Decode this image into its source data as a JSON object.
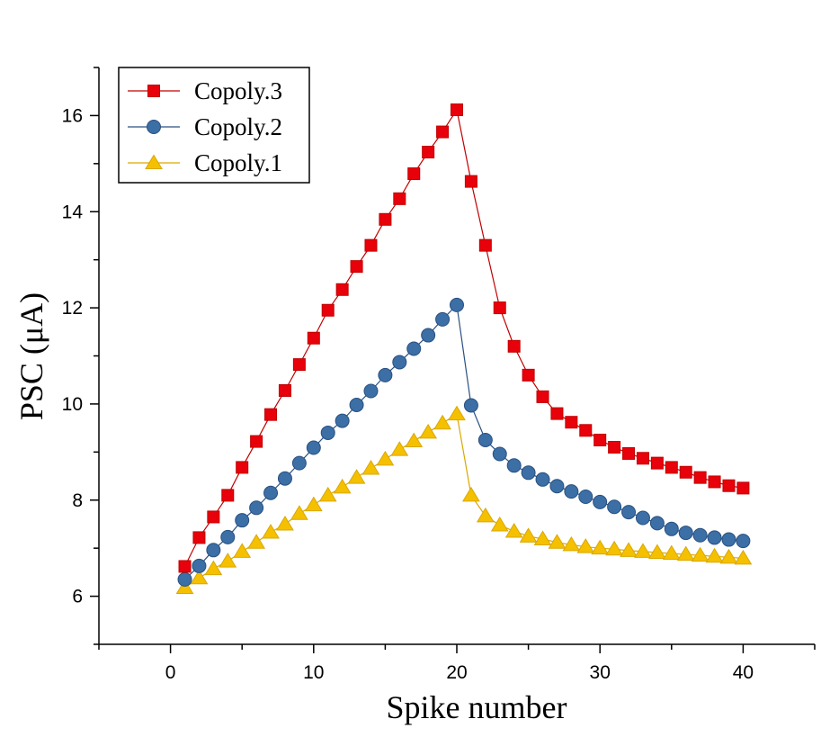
{
  "chart_data": {
    "type": "line",
    "xlabel": "Spike number",
    "ylabel": "PSC (μA)",
    "xlim": [
      -5,
      45
    ],
    "ylim": [
      5,
      17
    ],
    "xticks": [
      "0",
      "10",
      "20",
      "30",
      "40"
    ],
    "yticks": [
      "6",
      "8",
      "10",
      "12",
      "14",
      "16"
    ],
    "legend_position": "top-left",
    "grid": false,
    "x": [
      1,
      2,
      3,
      4,
      5,
      6,
      7,
      8,
      9,
      10,
      11,
      12,
      13,
      14,
      15,
      16,
      17,
      18,
      19,
      20,
      21,
      22,
      23,
      24,
      25,
      26,
      27,
      28,
      29,
      30,
      31,
      32,
      33,
      34,
      35,
      36,
      37,
      38,
      39,
      40
    ],
    "series": [
      {
        "name": "Copoly.3",
        "color": "#e8000b",
        "edge": "#c00000",
        "marker": "square",
        "values": [
          6.62,
          7.22,
          7.65,
          8.1,
          8.68,
          9.22,
          9.78,
          10.28,
          10.82,
          11.37,
          11.95,
          12.38,
          12.86,
          13.3,
          13.84,
          14.27,
          14.79,
          15.24,
          15.66,
          16.12,
          14.63,
          13.3,
          12.0,
          11.2,
          10.6,
          10.15,
          9.8,
          9.62,
          9.45,
          9.25,
          9.1,
          8.97,
          8.87,
          8.77,
          8.68,
          8.58,
          8.47,
          8.38,
          8.3,
          8.25
        ]
      },
      {
        "name": "Copoly.2",
        "color": "#3b6fa5",
        "edge": "#2a5080",
        "marker": "circle",
        "values": [
          6.35,
          6.63,
          6.96,
          7.23,
          7.58,
          7.84,
          8.15,
          8.45,
          8.77,
          9.09,
          9.4,
          9.65,
          9.98,
          10.27,
          10.6,
          10.87,
          11.15,
          11.43,
          11.76,
          12.06,
          9.97,
          9.25,
          8.96,
          8.72,
          8.57,
          8.43,
          8.29,
          8.18,
          8.07,
          7.96,
          7.86,
          7.75,
          7.63,
          7.52,
          7.4,
          7.32,
          7.27,
          7.22,
          7.18,
          7.15
        ]
      },
      {
        "name": "Copoly.1",
        "color": "#f5c000",
        "edge": "#d9a800",
        "marker": "triangle",
        "values": [
          6.18,
          6.38,
          6.57,
          6.73,
          6.93,
          7.12,
          7.33,
          7.5,
          7.72,
          7.9,
          8.1,
          8.27,
          8.47,
          8.66,
          8.85,
          9.05,
          9.23,
          9.41,
          9.6,
          9.79,
          8.1,
          7.67,
          7.48,
          7.35,
          7.25,
          7.19,
          7.12,
          7.07,
          7.03,
          7.0,
          6.98,
          6.95,
          6.93,
          6.91,
          6.89,
          6.87,
          6.85,
          6.83,
          6.81,
          6.79
        ]
      }
    ]
  }
}
